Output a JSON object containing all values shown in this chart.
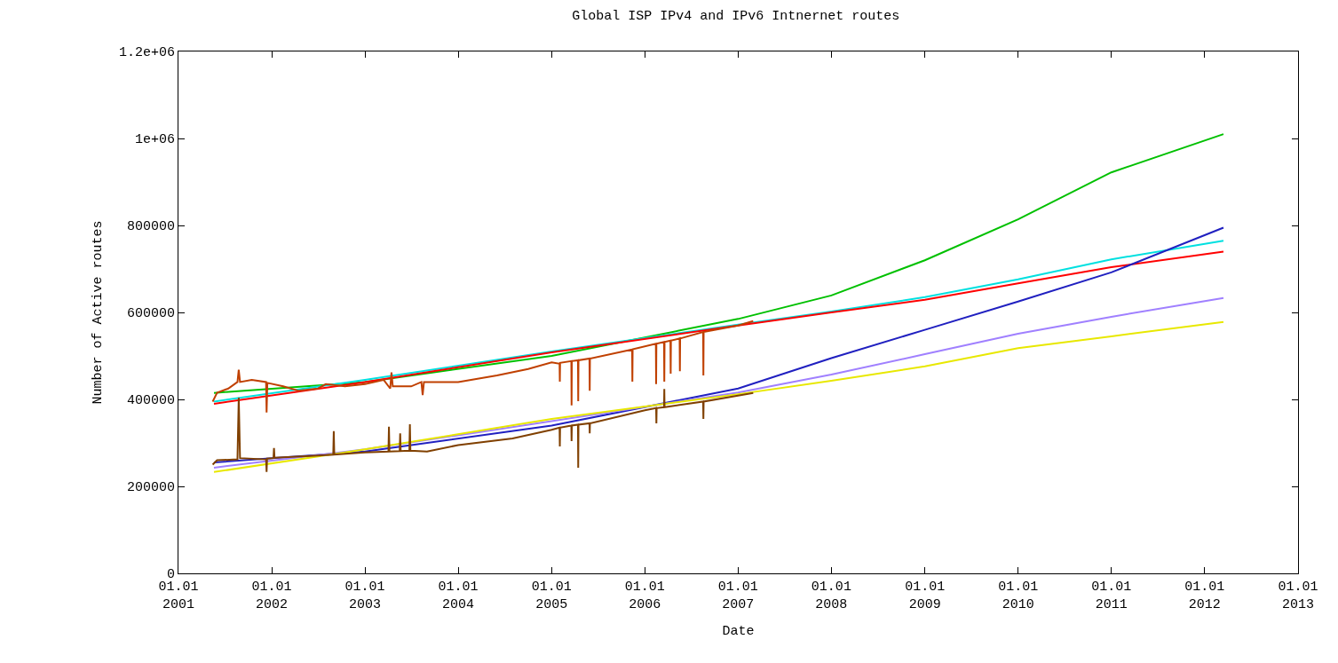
{
  "chart_data": {
    "type": "line",
    "title": "Global ISP IPv4 and IPv6 Intnernet routes",
    "xlabel": "Date",
    "ylabel": "Number of Active routes",
    "x": [
      "2001-05-20",
      "2003-01-01",
      "2005-01-01",
      "2007-01-01",
      "2008-01-01",
      "2009-01-01",
      "2010-01-01",
      "2011-01-01",
      "2012-03-15"
    ],
    "series": [
      {
        "color": "#00c000",
        "values": [
          415000,
          440000,
          500000,
          585000,
          639000,
          720000,
          814000,
          922000,
          1010000
        ]
      },
      {
        "color": "#00e0e0",
        "values": [
          395000,
          445000,
          510000,
          572000,
          602000,
          635000,
          676000,
          722000,
          765000
        ]
      },
      {
        "color": "#ff0000",
        "values": [
          390000,
          440000,
          508000,
          570000,
          600000,
          629000,
          667000,
          704000,
          740000
        ]
      },
      {
        "color": "#2020c0",
        "values": [
          255000,
          280000,
          340000,
          425000,
          495000,
          560000,
          625000,
          692000,
          795000
        ]
      },
      {
        "color": "#a080ff",
        "values": [
          243000,
          285000,
          350000,
          416000,
          457000,
          504000,
          551000,
          590000,
          633000
        ]
      },
      {
        "color": "#e8e800",
        "values": [
          233000,
          285000,
          355000,
          412000,
          443000,
          476000,
          518000,
          545000,
          578000
        ]
      },
      {
        "color": "#c04000",
        "x": [
          "2001-05-15",
          "2001-06-01",
          "2001-07-15",
          "2001-08-20",
          "2001-08-25",
          "2001-08-30",
          "2001-10-15",
          "2001-12-10",
          "2001-12-12",
          "2001-12-15",
          "2002-02-15",
          "2002-04-15",
          "2002-07-01",
          "2002-08-01",
          "2002-10-15",
          "2003-01-01",
          "2003-03-15",
          "2003-04-10",
          "2003-04-15",
          "2003-04-20",
          "2003-07-01",
          "2003-08-10",
          "2003-08-15",
          "2003-08-20",
          "2004-01-01",
          "2004-06-01",
          "2004-10-01",
          "2005-01-01",
          "2005-02-01",
          "2005-02-02",
          "2005-02-03",
          "2005-03-19",
          "2005-03-20",
          "2005-03-21",
          "2005-04-14",
          "2005-04-15",
          "2005-04-16",
          "2005-05-29",
          "2005-05-30",
          "2005-05-31",
          "2005-11-12",
          "2005-11-13",
          "2005-11-14",
          "2006-02-13",
          "2006-02-14",
          "2006-02-15",
          "2006-03-17",
          "2006-03-18",
          "2006-03-19",
          "2006-04-11",
          "2006-04-12",
          "2006-04-13",
          "2006-05-17",
          "2006-05-18",
          "2006-05-19",
          "2006-08-17",
          "2006-08-18",
          "2006-08-19",
          "2007-01-01",
          "2007-03-01"
        ],
        "values": [
          395000,
          415000,
          425000,
          440000,
          468000,
          440000,
          445000,
          440000,
          370000,
          438000,
          430000,
          420000,
          425000,
          435000,
          430000,
          435000,
          445000,
          425000,
          462000,
          430000,
          430000,
          440000,
          410000,
          440000,
          440000,
          455000,
          470000,
          485000,
          482000,
          441000,
          484000,
          488000,
          386000,
          488000,
          490000,
          396000,
          490000,
          494000,
          420000,
          494000,
          515000,
          441000,
          515000,
          528000,
          435000,
          528000,
          532000,
          441000,
          532000,
          535000,
          459000,
          535000,
          540000,
          465000,
          540000,
          555000,
          455000,
          555000,
          570000,
          580000
        ]
      },
      {
        "color": "#804000",
        "x": [
          "2001-05-15",
          "2001-06-01",
          "2001-08-20",
          "2001-08-25",
          "2001-08-30",
          "2001-12-10",
          "2001-12-12",
          "2001-12-14",
          "2002-01-08",
          "2002-01-10",
          "2002-01-12",
          "2002-06-01",
          "2002-08-30",
          "2002-09-01",
          "2002-09-03",
          "2003-01-01",
          "2003-04-03",
          "2003-04-05",
          "2003-04-07",
          "2003-05-17",
          "2003-05-19",
          "2003-05-21",
          "2003-06-24",
          "2003-06-26",
          "2003-06-28",
          "2003-09-01",
          "2004-01-01",
          "2004-08-01",
          "2005-01-01",
          "2005-02-01",
          "2005-02-02",
          "2005-02-03",
          "2005-03-19",
          "2005-03-20",
          "2005-03-21",
          "2005-04-14",
          "2005-04-15",
          "2005-04-16",
          "2005-05-29",
          "2005-05-30",
          "2005-05-31",
          "2006-01-01",
          "2006-02-14",
          "2006-02-15",
          "2006-02-16",
          "2006-03-17",
          "2006-03-18",
          "2006-03-19",
          "2006-08-17",
          "2006-08-18",
          "2006-08-19",
          "2007-03-01"
        ],
        "values": [
          250000,
          260000,
          262000,
          404000,
          265000,
          262000,
          233000,
          264000,
          265000,
          288000,
          266000,
          270000,
          273000,
          327000,
          273000,
          278000,
          280000,
          337000,
          280000,
          281000,
          322000,
          281000,
          282000,
          343000,
          282000,
          280000,
          295000,
          310000,
          330000,
          335000,
          292000,
          335000,
          340000,
          304000,
          340000,
          342000,
          243000,
          342000,
          345000,
          322000,
          345000,
          375000,
          380000,
          345000,
          380000,
          382000,
          424000,
          382000,
          395000,
          355000,
          395000,
          415000
        ]
      }
    ],
    "xlim": [
      "2001-01-01",
      "2013-01-01"
    ],
    "xticks": [
      {
        "value": "2001-01-01",
        "label": "01.01\n2001"
      },
      {
        "value": "2002-01-01",
        "label": "01.01\n2002"
      },
      {
        "value": "2003-01-01",
        "label": "01.01\n2003"
      },
      {
        "value": "2004-01-01",
        "label": "01.01\n2004"
      },
      {
        "value": "2005-01-01",
        "label": "01.01\n2005"
      },
      {
        "value": "2006-01-01",
        "label": "01.01\n2006"
      },
      {
        "value": "2007-01-01",
        "label": "01.01\n2007"
      },
      {
        "value": "2008-01-01",
        "label": "01.01\n2008"
      },
      {
        "value": "2009-01-01",
        "label": "01.01\n2009"
      },
      {
        "value": "2010-01-01",
        "label": "01.01\n2010"
      },
      {
        "value": "2011-01-01",
        "label": "01.01\n2011"
      },
      {
        "value": "2012-01-01",
        "label": "01.01\n2012"
      },
      {
        "value": "2013-01-01",
        "label": "01.01\n2013"
      }
    ],
    "ylim": [
      0,
      1200000
    ],
    "yticks": [
      0,
      200000,
      400000,
      600000,
      800000,
      {
        "value": 1000000,
        "label": "1e+06"
      },
      {
        "value": 1200000,
        "label": "1.2e+06"
      }
    ],
    "marker": "none",
    "line_style": "solid"
  }
}
